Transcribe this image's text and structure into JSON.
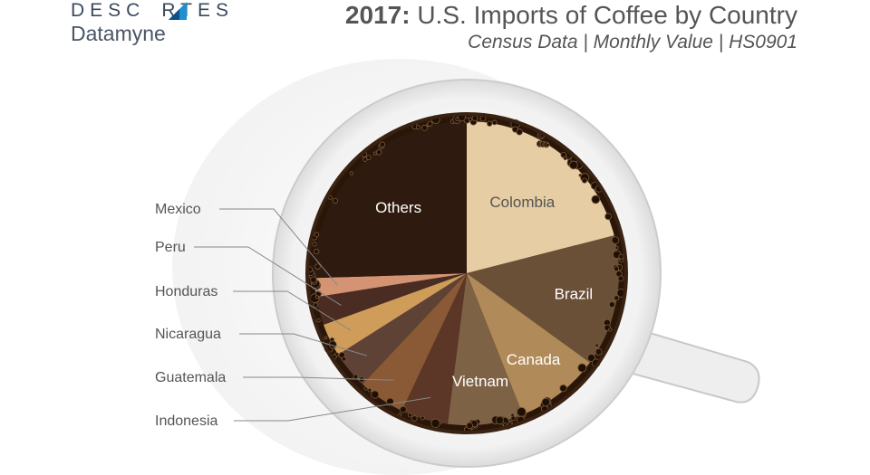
{
  "brand": {
    "name_part1": "DESC",
    "name_part2": "RTES",
    "sub": "Datamyne"
  },
  "header": {
    "year": "2017:",
    "title_rest": "U.S. Imports of Coffee by Country",
    "subtitle": "Census Data | Monthly Value | HS0901"
  },
  "chart_data": {
    "type": "pie",
    "title": "2017: U.S. Imports of Coffee by Country",
    "subtitle": "Census Data | Monthly Value | HS0901",
    "slices": [
      {
        "label": "Colombia",
        "value": 21.0,
        "color": "#e6cda4",
        "label_style": "inside-dark"
      },
      {
        "label": "Brazil",
        "value": 14.0,
        "color": "#6b5038",
        "label_style": "inside"
      },
      {
        "label": "Canada",
        "value": 9.0,
        "color": "#b08a58",
        "label_style": "inside"
      },
      {
        "label": "Vietnam",
        "value": 8.0,
        "color": "#7e6246",
        "label_style": "inside"
      },
      {
        "label": "Indonesia",
        "value": 5.0,
        "color": "#5c3626",
        "label_style": "callout"
      },
      {
        "label": "Guatemala",
        "value": 5.0,
        "color": "#8a5a36",
        "label_style": "callout"
      },
      {
        "label": "Nicaragua",
        "value": 4.0,
        "color": "#5e4236",
        "label_style": "callout"
      },
      {
        "label": "Honduras",
        "value": 3.5,
        "color": "#cf9c5a",
        "label_style": "callout"
      },
      {
        "label": "Peru",
        "value": 3.0,
        "color": "#4a2c22",
        "label_style": "callout"
      },
      {
        "label": "Mexico",
        "value": 2.0,
        "color": "#d49474",
        "label_style": "callout"
      },
      {
        "label": "Others",
        "value": 25.5,
        "color": "#2e1a0e",
        "label_style": "inside"
      }
    ]
  },
  "colors": {
    "text": "#555555",
    "brand": "#3a4a5e",
    "accent": "#1e8fd0",
    "cup": "#f4f4f4"
  }
}
